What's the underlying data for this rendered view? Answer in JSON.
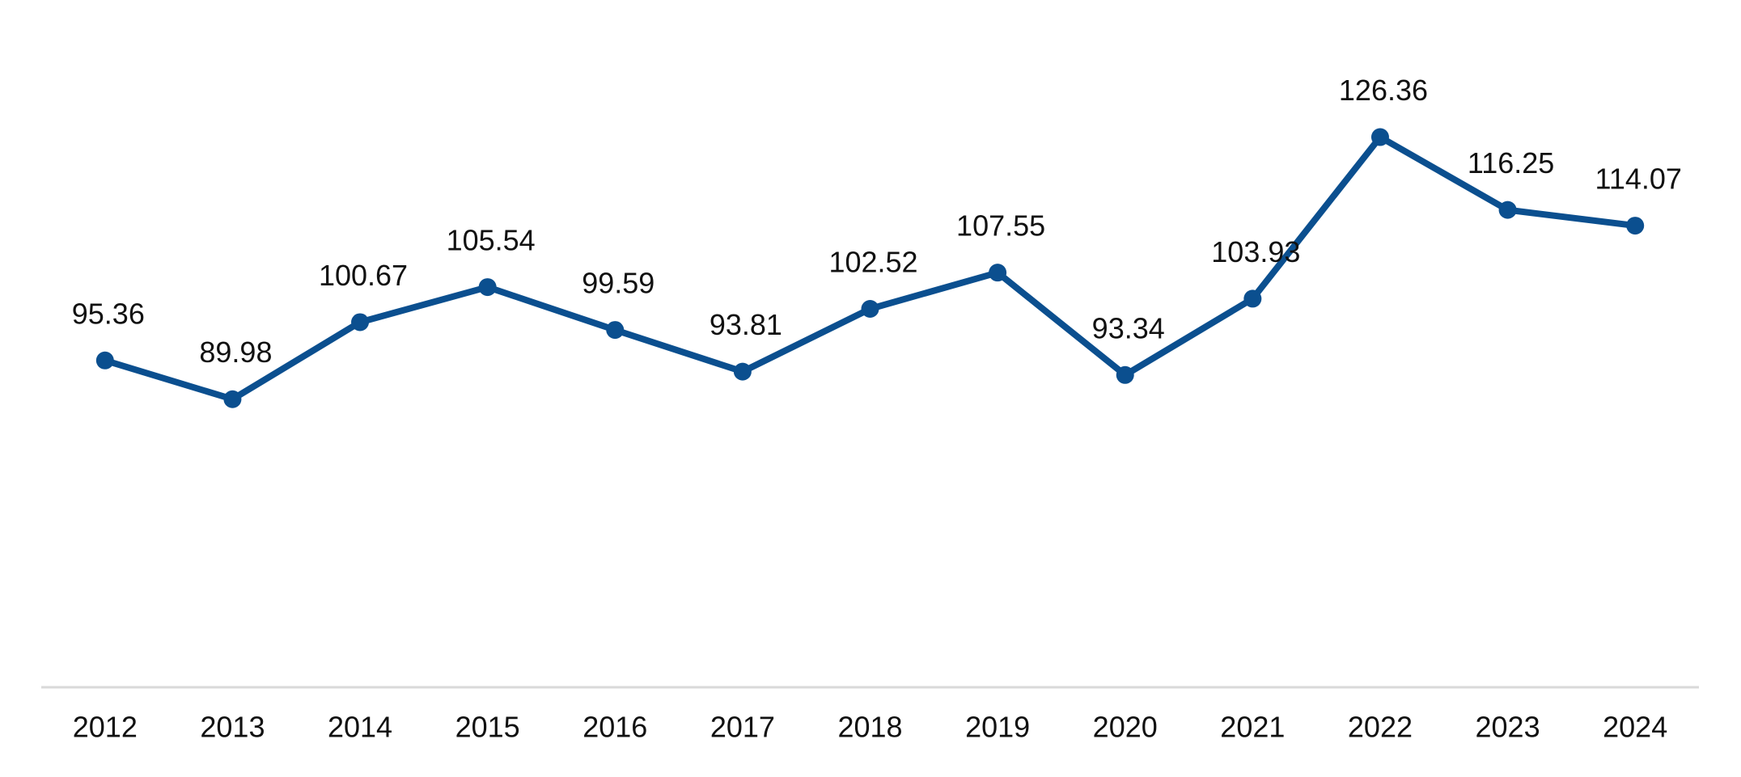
{
  "chart_data": {
    "type": "line",
    "categories": [
      "2012",
      "2013",
      "2014",
      "2015",
      "2016",
      "2017",
      "2018",
      "2019",
      "2020",
      "2021",
      "2022",
      "2023",
      "2024"
    ],
    "values": [
      95.36,
      89.98,
      100.67,
      105.54,
      99.59,
      93.81,
      102.52,
      107.55,
      93.34,
      103.93,
      126.36,
      116.25,
      114.07
    ],
    "color": "#0b4f8f",
    "ylim": [
      50,
      140
    ]
  }
}
